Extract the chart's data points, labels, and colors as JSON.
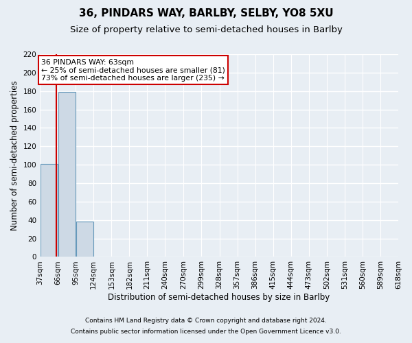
{
  "title": "36, PINDARS WAY, BARLBY, SELBY, YO8 5XU",
  "subtitle": "Size of property relative to semi-detached houses in Barlby",
  "xlabel": "Distribution of semi-detached houses by size in Barlby",
  "ylabel": "Number of semi-detached properties",
  "footnote1": "Contains HM Land Registry data © Crown copyright and database right 2024.",
  "footnote2": "Contains public sector information licensed under the Open Government Licence v3.0.",
  "bins": [
    37,
    66,
    95,
    124,
    153,
    182,
    211,
    240,
    270,
    299,
    328,
    357,
    386,
    415,
    444,
    473,
    502,
    531,
    560,
    589,
    618
  ],
  "bin_labels": [
    "37sqm",
    "66sqm",
    "95sqm",
    "124sqm",
    "153sqm",
    "182sqm",
    "211sqm",
    "240sqm",
    "270sqm",
    "299sqm",
    "328sqm",
    "357sqm",
    "386sqm",
    "415sqm",
    "444sqm",
    "473sqm",
    "502sqm",
    "531sqm",
    "560sqm",
    "589sqm",
    "618sqm"
  ],
  "bar_heights": [
    101,
    179,
    38,
    0,
    0,
    0,
    0,
    0,
    0,
    0,
    0,
    0,
    0,
    0,
    0,
    0,
    0,
    0,
    0,
    0
  ],
  "bar_color": "#cdd9e5",
  "bar_edge_color": "#6699bb",
  "property_size": 63,
  "property_line_color": "#cc0000",
  "ylim": [
    0,
    220
  ],
  "yticks": [
    0,
    20,
    40,
    60,
    80,
    100,
    120,
    140,
    160,
    180,
    200,
    220
  ],
  "annotation_text": "36 PINDARS WAY: 63sqm\n← 25% of semi-detached houses are smaller (81)\n73% of semi-detached houses are larger (235) →",
  "annotation_box_color": "#ffffff",
  "annotation_box_edge": "#cc0000",
  "background_color": "#e8eef4",
  "grid_color": "#ffffff",
  "title_fontsize": 11,
  "subtitle_fontsize": 9.5,
  "axis_fontsize": 8.5,
  "tick_fontsize": 7.5,
  "footnote_fontsize": 6.5
}
